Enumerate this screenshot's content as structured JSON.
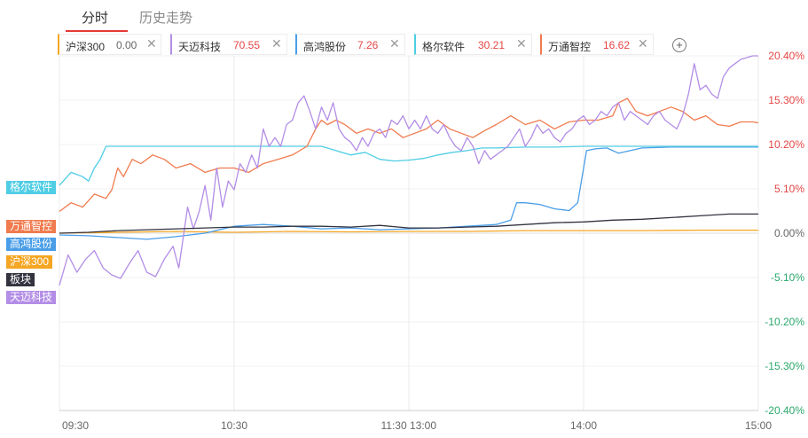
{
  "tabs": [
    {
      "label": "分时",
      "active": true
    },
    {
      "label": "历史走势",
      "active": false
    }
  ],
  "stocks": [
    {
      "name": "沪深300",
      "value": "0.00",
      "color": "#f5a623",
      "value_color": "#666666"
    },
    {
      "name": "天迈科技",
      "value": "70.55",
      "color": "#b38de6",
      "value_color": "#e64545"
    },
    {
      "name": "高鸿股份",
      "value": "7.26",
      "color": "#4a9ee8",
      "value_color": "#e64545"
    },
    {
      "name": "格尔软件",
      "value": "30.21",
      "color": "#4fcde4",
      "value_color": "#e64545"
    },
    {
      "name": "万通智控",
      "value": "16.62",
      "color": "#f07b4e",
      "value_color": "#e64545"
    }
  ],
  "close_glyph": "✕",
  "add_glyph": "+",
  "side_tags": [
    {
      "label": "格尔软件",
      "color": "#4fcde4"
    },
    {
      "label": "万通智控",
      "color": "#f07b4e"
    },
    {
      "label": "高鸿股份",
      "color": "#4a9ee8"
    },
    {
      "label": "沪深300",
      "color": "#f5a623"
    },
    {
      "label": "板块",
      "color": "#333340"
    },
    {
      "label": "天迈科技",
      "color": "#b38de6"
    }
  ],
  "chart_data": {
    "type": "line",
    "y_unit": "%",
    "ylim": [
      -20.4,
      20.4
    ],
    "y_ticks": [
      {
        "value": 20.4,
        "label": "20.40%"
      },
      {
        "value": 15.3,
        "label": "15.30%"
      },
      {
        "value": 10.2,
        "label": "10.20%"
      },
      {
        "value": 5.1,
        "label": "5.10%"
      },
      {
        "value": 0,
        "label": "0.00%"
      },
      {
        "value": -5.1,
        "label": "-5.10%"
      },
      {
        "value": -10.2,
        "label": "-10.20%"
      },
      {
        "value": -15.3,
        "label": "-15.30%"
      },
      {
        "value": -20.4,
        "label": "-20.40%"
      }
    ],
    "y_colors": {
      "up": "#e64545",
      "zero": "#666666",
      "down": "#2aa86b"
    },
    "x_range": [
      0,
      240
    ],
    "x_ticks": [
      {
        "t": 0,
        "label": "09:30"
      },
      {
        "t": 60,
        "label": "10:30"
      },
      {
        "t": 120,
        "label": "11:30 13:00"
      },
      {
        "t": 180,
        "label": "14:00"
      },
      {
        "t": 240,
        "label": "15:00"
      }
    ],
    "grid": true,
    "series": [
      {
        "name": "沪深300",
        "color": "#f5a623",
        "points": [
          [
            0,
            0.0
          ],
          [
            20,
            0.1
          ],
          [
            40,
            0.2
          ],
          [
            60,
            0.1
          ],
          [
            80,
            0.2
          ],
          [
            100,
            0.15
          ],
          [
            120,
            0.2
          ],
          [
            140,
            0.2
          ],
          [
            160,
            0.3
          ],
          [
            180,
            0.3
          ],
          [
            200,
            0.3
          ],
          [
            220,
            0.35
          ],
          [
            240,
            0.35
          ]
        ]
      },
      {
        "name": "天迈科技",
        "color": "#b38de6",
        "points": [
          [
            0,
            -6.0
          ],
          [
            3,
            -2.5
          ],
          [
            6,
            -4.5
          ],
          [
            9,
            -3.0
          ],
          [
            12,
            -2.0
          ],
          [
            15,
            -4.0
          ],
          [
            18,
            -4.8
          ],
          [
            21,
            -5.2
          ],
          [
            24,
            -3.5
          ],
          [
            27,
            -2.0
          ],
          [
            30,
            -4.5
          ],
          [
            33,
            -5.0
          ],
          [
            36,
            -3.0
          ],
          [
            39,
            -1.5
          ],
          [
            41,
            -4.0
          ],
          [
            44,
            3.0
          ],
          [
            46,
            0.5
          ],
          [
            48,
            2.5
          ],
          [
            50,
            5.5
          ],
          [
            52,
            1.5
          ],
          [
            54,
            7.5
          ],
          [
            56,
            3.0
          ],
          [
            58,
            6.0
          ],
          [
            60,
            5.0
          ],
          [
            62,
            8.0
          ],
          [
            64,
            7.0
          ],
          [
            66,
            9.0
          ],
          [
            68,
            7.5
          ],
          [
            70,
            12.0
          ],
          [
            72,
            10.0
          ],
          [
            74,
            11.0
          ],
          [
            76,
            10.0
          ],
          [
            78,
            12.5
          ],
          [
            80,
            13.0
          ],
          [
            82,
            15.0
          ],
          [
            84,
            15.8
          ],
          [
            86,
            14.0
          ],
          [
            88,
            12.0
          ],
          [
            90,
            14.5
          ],
          [
            92,
            13.0
          ],
          [
            94,
            15.0
          ],
          [
            96,
            12.0
          ],
          [
            98,
            11.0
          ],
          [
            100,
            10.5
          ],
          [
            102,
            9.5
          ],
          [
            104,
            11.0
          ],
          [
            106,
            10.0
          ],
          [
            108,
            11.5
          ],
          [
            110,
            12.0
          ],
          [
            112,
            11.0
          ],
          [
            114,
            13.0
          ],
          [
            116,
            12.5
          ],
          [
            118,
            13.5
          ],
          [
            120,
            12.0
          ],
          [
            122,
            13.0
          ],
          [
            124,
            12.0
          ],
          [
            126,
            13.5
          ],
          [
            128,
            12.0
          ],
          [
            130,
            11.5
          ],
          [
            132,
            12.5
          ],
          [
            134,
            11.0
          ],
          [
            136,
            10.0
          ],
          [
            138,
            9.5
          ],
          [
            140,
            11.0
          ],
          [
            142,
            10.0
          ],
          [
            144,
            8.0
          ],
          [
            146,
            9.5
          ],
          [
            148,
            8.5
          ],
          [
            150,
            9.0
          ],
          [
            152,
            9.5
          ],
          [
            154,
            10.0
          ],
          [
            156,
            11.0
          ],
          [
            158,
            12.0
          ],
          [
            160,
            10.0
          ],
          [
            162,
            11.0
          ],
          [
            164,
            12.5
          ],
          [
            166,
            11.5
          ],
          [
            168,
            12.0
          ],
          [
            170,
            11.0
          ],
          [
            172,
            10.5
          ],
          [
            174,
            11.5
          ],
          [
            176,
            12.0
          ],
          [
            178,
            13.0
          ],
          [
            180,
            13.5
          ],
          [
            182,
            12.5
          ],
          [
            184,
            13.0
          ],
          [
            186,
            14.0
          ],
          [
            188,
            13.5
          ],
          [
            190,
            14.5
          ],
          [
            192,
            15.0
          ],
          [
            194,
            13.0
          ],
          [
            196,
            14.0
          ],
          [
            198,
            13.5
          ],
          [
            200,
            13.0
          ],
          [
            202,
            12.5
          ],
          [
            204,
            13.5
          ],
          [
            206,
            14.0
          ],
          [
            208,
            13.0
          ],
          [
            210,
            12.5
          ],
          [
            212,
            12.0
          ],
          [
            214,
            13.5
          ],
          [
            216,
            16.0
          ],
          [
            218,
            19.5
          ],
          [
            220,
            16.5
          ],
          [
            222,
            17.0
          ],
          [
            224,
            16.0
          ],
          [
            226,
            15.5
          ],
          [
            228,
            18.0
          ],
          [
            230,
            19.0
          ],
          [
            232,
            19.5
          ],
          [
            234,
            20.0
          ],
          [
            236,
            20.2
          ],
          [
            238,
            20.4
          ],
          [
            240,
            20.4
          ]
        ]
      },
      {
        "name": "高鸿股份",
        "color": "#4a9ee8",
        "points": [
          [
            0,
            -0.2
          ],
          [
            10,
            -0.3
          ],
          [
            20,
            -0.5
          ],
          [
            30,
            -0.7
          ],
          [
            40,
            -0.4
          ],
          [
            50,
            0.0
          ],
          [
            60,
            0.8
          ],
          [
            70,
            1.0
          ],
          [
            80,
            0.8
          ],
          [
            90,
            0.5
          ],
          [
            100,
            0.6
          ],
          [
            110,
            0.4
          ],
          [
            120,
            0.5
          ],
          [
            130,
            0.6
          ],
          [
            140,
            0.8
          ],
          [
            150,
            1.0
          ],
          [
            155,
            1.5
          ],
          [
            157,
            3.5
          ],
          [
            160,
            3.5
          ],
          [
            165,
            3.3
          ],
          [
            170,
            2.8
          ],
          [
            175,
            2.6
          ],
          [
            178,
            3.5
          ],
          [
            181,
            9.5
          ],
          [
            184,
            9.7
          ],
          [
            188,
            9.8
          ],
          [
            192,
            9.2
          ],
          [
            196,
            9.5
          ],
          [
            200,
            9.8
          ],
          [
            210,
            9.9
          ],
          [
            220,
            9.9
          ],
          [
            230,
            9.9
          ],
          [
            240,
            9.9
          ]
        ]
      },
      {
        "name": "格尔软件",
        "color": "#4fcde4",
        "points": [
          [
            0,
            5.5
          ],
          [
            4,
            7.0
          ],
          [
            8,
            6.5
          ],
          [
            10,
            6.0
          ],
          [
            12,
            7.5
          ],
          [
            14,
            8.5
          ],
          [
            16,
            10.0
          ],
          [
            30,
            10.0
          ],
          [
            60,
            10.0
          ],
          [
            90,
            10.0
          ],
          [
            95,
            9.5
          ],
          [
            100,
            9.0
          ],
          [
            105,
            9.3
          ],
          [
            110,
            8.5
          ],
          [
            115,
            8.3
          ],
          [
            120,
            8.4
          ],
          [
            125,
            8.6
          ],
          [
            130,
            9.0
          ],
          [
            135,
            9.3
          ],
          [
            140,
            9.5
          ],
          [
            145,
            9.8
          ],
          [
            150,
            9.8
          ],
          [
            160,
            9.9
          ],
          [
            170,
            9.9
          ],
          [
            180,
            10.0
          ],
          [
            200,
            10.0
          ],
          [
            220,
            10.0
          ],
          [
            240,
            10.0
          ]
        ]
      },
      {
        "name": "万通智控",
        "color": "#f07b4e",
        "points": [
          [
            0,
            2.5
          ],
          [
            4,
            3.5
          ],
          [
            8,
            3.0
          ],
          [
            12,
            4.5
          ],
          [
            16,
            4.0
          ],
          [
            18,
            5.0
          ],
          [
            20,
            7.5
          ],
          [
            22,
            6.5
          ],
          [
            25,
            8.5
          ],
          [
            28,
            8.0
          ],
          [
            32,
            9.0
          ],
          [
            36,
            8.5
          ],
          [
            40,
            7.5
          ],
          [
            45,
            8.0
          ],
          [
            50,
            7.0
          ],
          [
            55,
            7.5
          ],
          [
            60,
            7.5
          ],
          [
            65,
            7.0
          ],
          [
            70,
            8.0
          ],
          [
            75,
            8.5
          ],
          [
            80,
            9.0
          ],
          [
            85,
            10.0
          ],
          [
            88,
            12.0
          ],
          [
            90,
            13.0
          ],
          [
            92,
            12.5
          ],
          [
            95,
            13.0
          ],
          [
            98,
            12.5
          ],
          [
            102,
            11.5
          ],
          [
            106,
            12.0
          ],
          [
            110,
            11.5
          ],
          [
            114,
            12.0
          ],
          [
            118,
            11.0
          ],
          [
            122,
            11.5
          ],
          [
            126,
            12.0
          ],
          [
            130,
            13.0
          ],
          [
            134,
            12.0
          ],
          [
            138,
            11.5
          ],
          [
            142,
            11.0
          ],
          [
            146,
            11.8
          ],
          [
            150,
            12.5
          ],
          [
            155,
            13.5
          ],
          [
            160,
            12.5
          ],
          [
            165,
            13.0
          ],
          [
            170,
            12.0
          ],
          [
            175,
            12.8
          ],
          [
            180,
            13.0
          ],
          [
            185,
            13.0
          ],
          [
            190,
            13.5
          ],
          [
            192,
            15.0
          ],
          [
            195,
            15.5
          ],
          [
            198,
            14.0
          ],
          [
            202,
            13.5
          ],
          [
            206,
            14.0
          ],
          [
            210,
            14.5
          ],
          [
            214,
            14.0
          ],
          [
            218,
            13.0
          ],
          [
            222,
            13.5
          ],
          [
            226,
            12.5
          ],
          [
            230,
            12.3
          ],
          [
            234,
            12.8
          ],
          [
            238,
            12.8
          ],
          [
            240,
            12.7
          ]
        ]
      },
      {
        "name": "板块",
        "color": "#333340",
        "points": [
          [
            0,
            0.0
          ],
          [
            10,
            0.1
          ],
          [
            20,
            0.3
          ],
          [
            30,
            0.4
          ],
          [
            40,
            0.5
          ],
          [
            50,
            0.6
          ],
          [
            60,
            0.7
          ],
          [
            70,
            0.7
          ],
          [
            80,
            0.8
          ],
          [
            90,
            0.8
          ],
          [
            100,
            0.7
          ],
          [
            110,
            0.9
          ],
          [
            120,
            0.6
          ],
          [
            130,
            0.6
          ],
          [
            140,
            0.7
          ],
          [
            150,
            0.8
          ],
          [
            160,
            1.0
          ],
          [
            170,
            1.2
          ],
          [
            180,
            1.3
          ],
          [
            190,
            1.5
          ],
          [
            200,
            1.6
          ],
          [
            210,
            1.8
          ],
          [
            220,
            2.0
          ],
          [
            230,
            2.2
          ],
          [
            240,
            2.2
          ]
        ]
      }
    ]
  }
}
